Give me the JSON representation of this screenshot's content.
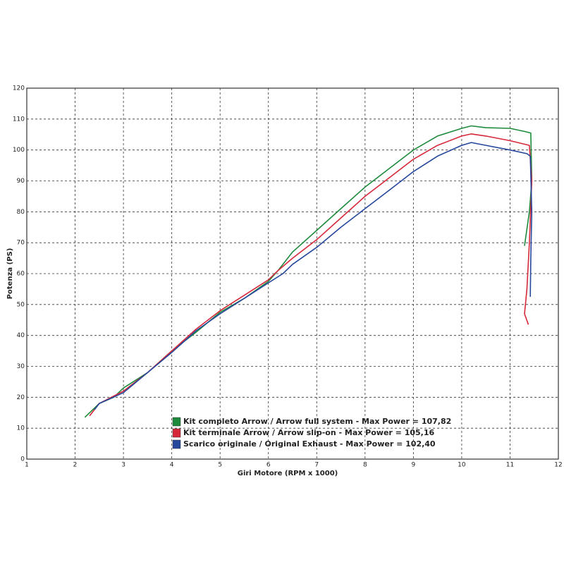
{
  "chart_data": {
    "type": "line",
    "xlabel": "Giri Motore (RPM x 1000)",
    "ylabel": "Potenza (PS)",
    "xlim": [
      1,
      12
    ],
    "xticks": [
      1,
      2,
      3,
      4,
      5,
      6,
      7,
      8,
      9,
      10,
      11,
      12
    ],
    "ylim": [
      0,
      120
    ],
    "yticks": [
      0,
      10,
      20,
      30,
      40,
      50,
      60,
      70,
      80,
      90,
      100,
      110,
      120
    ],
    "grid": true,
    "legend": "bottom-center",
    "series": [
      {
        "name": "Kit completo Arrow / Arrow full system - Max Power = 107,82",
        "color": "#1e8b3c",
        "x": [
          2.2,
          2.5,
          2.8,
          3.0,
          3.5,
          4.0,
          4.5,
          5.0,
          5.5,
          6.0,
          6.2,
          6.5,
          7.0,
          7.5,
          8.0,
          8.5,
          9.0,
          9.5,
          10.0,
          10.2,
          10.5,
          11.0,
          11.3,
          11.43,
          11.45,
          11.4,
          11.3
        ],
        "values": [
          13.5,
          18,
          20,
          23,
          28,
          35,
          41,
          47.5,
          52,
          57.5,
          61,
          67,
          74,
          81,
          88,
          94,
          100,
          104.5,
          107,
          107.8,
          107.2,
          107,
          106,
          105.5,
          90,
          80,
          69
        ]
      },
      {
        "name": "Kit terminale Arrow / Arrow slip-on - Max Power = 105,16",
        "color": "#d6283a",
        "x": [
          2.3,
          2.5,
          3.0,
          3.5,
          4.0,
          4.5,
          5.0,
          5.5,
          6.0,
          6.2,
          6.5,
          7.0,
          7.5,
          8.0,
          8.5,
          9.0,
          9.5,
          10.0,
          10.2,
          10.5,
          11.0,
          11.4,
          11.45,
          11.4,
          11.35,
          11.3,
          11.38
        ],
        "values": [
          14,
          18,
          22,
          28,
          35,
          42,
          48,
          53,
          58,
          61,
          65,
          71,
          78,
          85,
          91,
          97,
          101.5,
          104.5,
          105.2,
          104.5,
          103,
          101.5,
          90,
          70,
          55,
          47,
          43.5
        ]
      },
      {
        "name": "Scarico originale / Original Exhaust - Max Power = 102,40",
        "color": "#25479c",
        "x": [
          2.4,
          2.5,
          3.0,
          3.5,
          4.0,
          4.5,
          5.0,
          5.5,
          6.0,
          6.3,
          6.5,
          7.0,
          7.5,
          8.0,
          8.5,
          9.0,
          9.5,
          10.0,
          10.2,
          10.5,
          11.0,
          11.35,
          11.42,
          11.45,
          11.43,
          11.42
        ],
        "values": [
          16,
          18,
          21.5,
          28,
          34.5,
          41.5,
          47,
          52,
          57,
          60,
          63,
          68.5,
          75,
          81,
          87,
          93,
          98,
          101.5,
          102.4,
          101.5,
          100,
          98.8,
          98,
          80,
          65,
          52.5
        ]
      }
    ]
  }
}
